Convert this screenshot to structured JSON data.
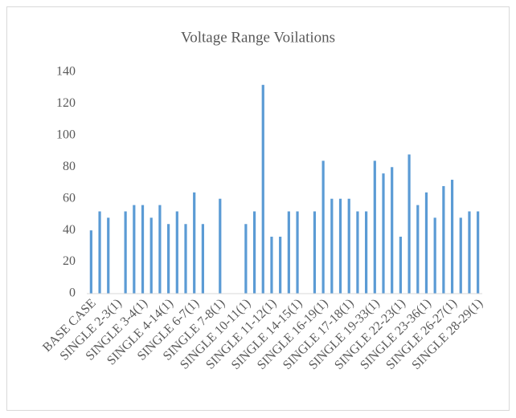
{
  "chart_data": {
    "type": "bar",
    "title": "Voltage Range Voilations",
    "categories": [
      "BASE CASE",
      null,
      null,
      "SINGLE 2-3(1)",
      null,
      null,
      "SINGLE 3-4(1)",
      null,
      null,
      "SINGLE 4-14(1)",
      null,
      null,
      "SINGLE 6-7(1)",
      null,
      null,
      "SINGLE 7-8(1)",
      null,
      null,
      "SINGLE 10-11(1)",
      null,
      null,
      "SINGLE 11-12(1)",
      null,
      null,
      "SINGLE 14-15(1)",
      null,
      null,
      "SINGLE 16-19(1)",
      null,
      null,
      "SINGLE 17-18(1)",
      null,
      null,
      "SINGLE 19-33(1)",
      null,
      null,
      "SINGLE 22-23(1)",
      null,
      null,
      "SINGLE 23-36(1)",
      null,
      null,
      "SINGLE 26-27(1)",
      null,
      null,
      "SINGLE 28-29(1)"
    ],
    "values": [
      40,
      52,
      48,
      0,
      52,
      56,
      56,
      48,
      56,
      44,
      52,
      44,
      64,
      44,
      0,
      60,
      0,
      0,
      44,
      52,
      132,
      36,
      36,
      52,
      52,
      0,
      52,
      84,
      60,
      60,
      60,
      52,
      52,
      84,
      76,
      80,
      36,
      88,
      56,
      64,
      48,
      68,
      72,
      48,
      52,
      52
    ],
    "color": "#5b9bd5",
    "ylim": [
      0,
      140
    ],
    "yticks": [
      0,
      20,
      40,
      60,
      80,
      100,
      120,
      140
    ],
    "grid": false
  }
}
